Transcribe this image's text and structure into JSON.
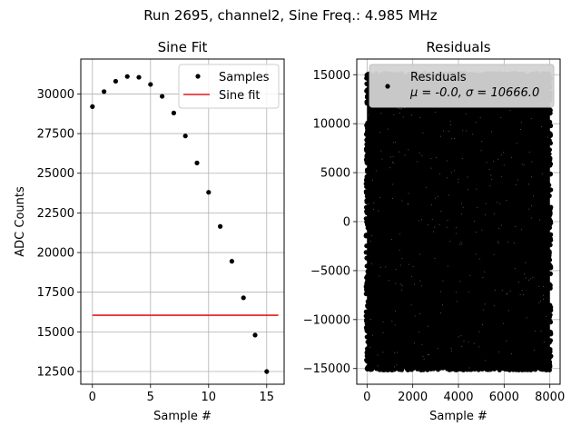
{
  "figure": {
    "suptitle": "Run 2695, channel2, Sine Freq.: 4.985 MHz"
  },
  "chart_data": [
    {
      "type": "scatter",
      "title": "Sine Fit",
      "xlabel": "Sample #",
      "ylabel": "ADC Counts",
      "xlim": [
        -1,
        16.5
      ],
      "ylim": [
        11700,
        32200
      ],
      "xticks": [
        "0",
        "5",
        "10",
        "15"
      ],
      "yticks": [
        "12500",
        "15000",
        "17500",
        "20000",
        "22500",
        "25000",
        "27500",
        "30000"
      ],
      "grid": true,
      "legend_position": "top-right",
      "series": [
        {
          "name": "Samples",
          "kind": "points",
          "color": "#000000",
          "x": [
            0,
            1,
            2,
            3,
            4,
            5,
            6,
            7,
            8,
            9,
            10,
            11,
            12,
            13,
            14,
            15
          ],
          "y": [
            29200,
            30150,
            30800,
            31100,
            31050,
            30600,
            29850,
            28800,
            27350,
            25650,
            23800,
            21650,
            19450,
            17150,
            14800,
            12500
          ]
        },
        {
          "name": "Sine fit",
          "kind": "line",
          "color": "#e41a1c",
          "x": [
            0,
            16
          ],
          "y": [
            16050,
            16050
          ]
        }
      ]
    },
    {
      "type": "scatter",
      "title": "Residuals",
      "xlabel": "Sample #",
      "ylabel": "",
      "xlim": [
        -450,
        8450
      ],
      "ylim": [
        -16600,
        16600
      ],
      "xticks": [
        "0",
        "2000",
        "4000",
        "6000",
        "8000"
      ],
      "yticks": [
        "−15000",
        "−10000",
        "−5000",
        "0",
        "5000",
        "10000",
        "15000"
      ],
      "grid": true,
      "legend_position": "top",
      "series": [
        {
          "name": "Residuals",
          "legend_stats": "μ = -0.0, σ = 10666.0",
          "kind": "points",
          "color": "#000000",
          "n_points": 8000,
          "x_range": [
            0,
            8000
          ],
          "y_range": [
            -15000,
            15000
          ],
          "distribution": "dense band spanning the full x and y range"
        }
      ]
    }
  ]
}
